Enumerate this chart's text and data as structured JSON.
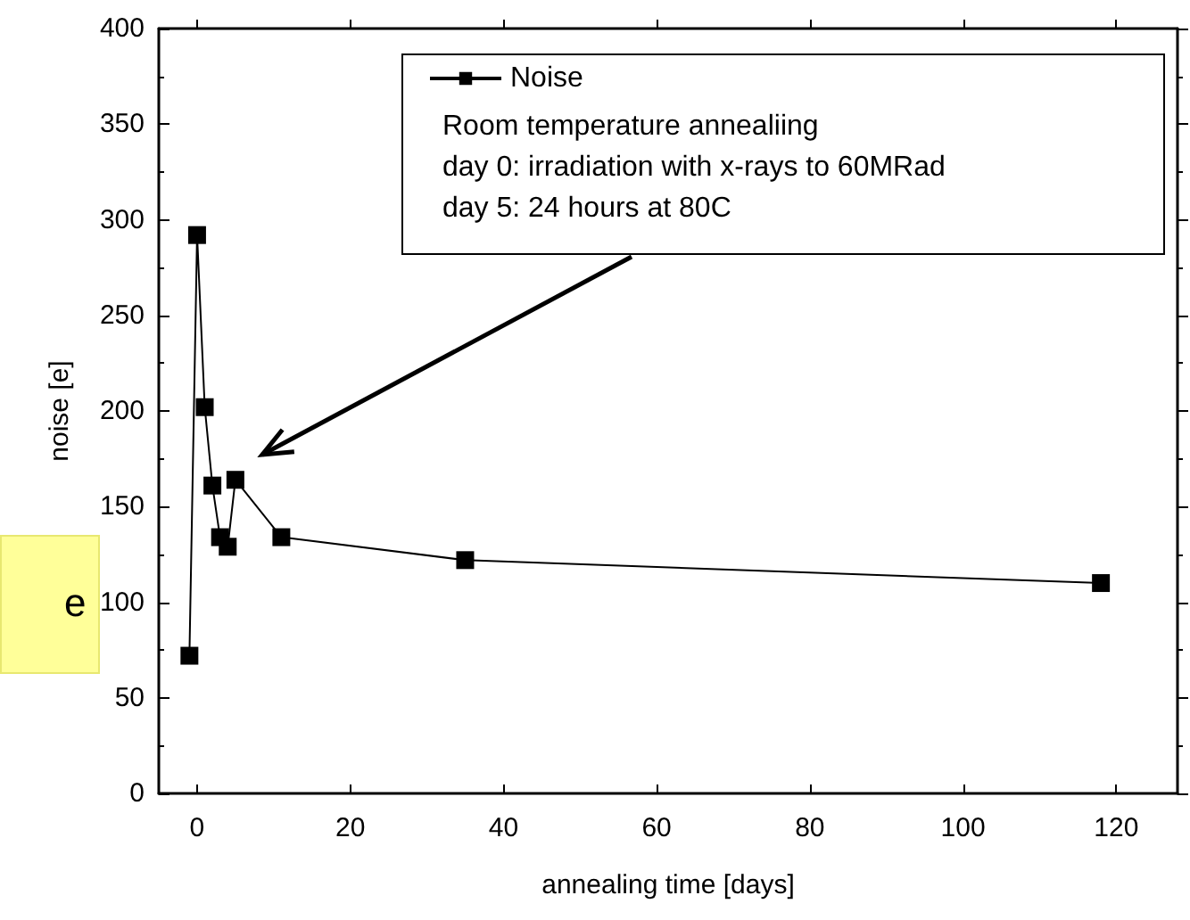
{
  "chart_data": {
    "type": "line",
    "xlabel": "annealing time [days]",
    "ylabel": "noise [e]",
    "x": [
      -1,
      0,
      1,
      2,
      3,
      4,
      5,
      11,
      35,
      118
    ],
    "series": [
      {
        "name": "Noise",
        "color": "#000000",
        "values": [
          72,
          292,
          202,
          161,
          134,
          129,
          164,
          134,
          122,
          110
        ]
      }
    ],
    "xlim": [
      -5,
      128
    ],
    "xticks": [
      0,
      20,
      40,
      60,
      80,
      100,
      120
    ],
    "ylim": [
      0,
      400
    ],
    "yticks": [
      0,
      50,
      100,
      150,
      200,
      250,
      300,
      350,
      400
    ],
    "annotations": [
      "Room temperature annealiing",
      "day 0: irradiation with x-rays to 60MRad",
      "day 5: 24 hours at 80C",
      "e"
    ],
    "legend": "top left",
    "grid": false,
    "marker": "square",
    "line_style": "solid"
  }
}
